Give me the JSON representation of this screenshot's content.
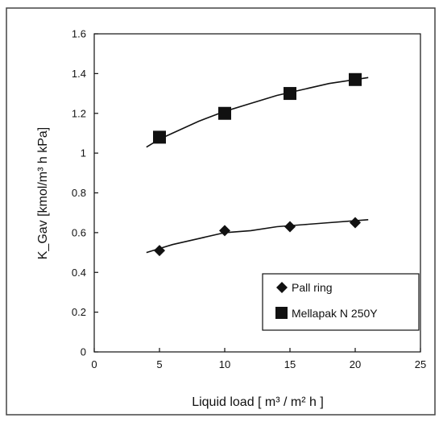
{
  "chart_data": {
    "type": "scatter",
    "title": "",
    "xlabel": "Liquid load [ m³ / m² h ]",
    "ylabel": "K_Gav [kmol/m³ h kPa]",
    "xlim": [
      0,
      25
    ],
    "ylim": [
      0,
      1.6
    ],
    "x_ticks": [
      "0",
      "5",
      "10",
      "15",
      "20",
      "25"
    ],
    "y_ticks": [
      "0",
      "0.2",
      "0.4",
      "0.6",
      "0.8",
      "1",
      "1.2",
      "1.4",
      "1.6"
    ],
    "grid": false,
    "legend_position": "bottom-right",
    "series": [
      {
        "name": "Pall ring",
        "marker": "diamond",
        "x": [
          5,
          10,
          15,
          20
        ],
        "y": [
          0.51,
          0.61,
          0.63,
          0.65
        ],
        "trend_x": [
          4,
          5,
          6,
          8,
          10,
          12,
          14,
          16,
          18,
          20,
          21
        ],
        "trend_y": [
          0.5,
          0.52,
          0.54,
          0.57,
          0.6,
          0.61,
          0.63,
          0.64,
          0.65,
          0.66,
          0.665
        ]
      },
      {
        "name": "Mellapak N 250Y",
        "marker": "square",
        "x": [
          5,
          10,
          15,
          20
        ],
        "y": [
          1.08,
          1.2,
          1.3,
          1.37
        ],
        "trend_x": [
          4,
          5,
          6,
          8,
          10,
          12,
          14,
          16,
          18,
          20,
          21
        ],
        "trend_y": [
          1.03,
          1.07,
          1.1,
          1.16,
          1.21,
          1.25,
          1.29,
          1.32,
          1.35,
          1.37,
          1.38
        ]
      }
    ]
  }
}
